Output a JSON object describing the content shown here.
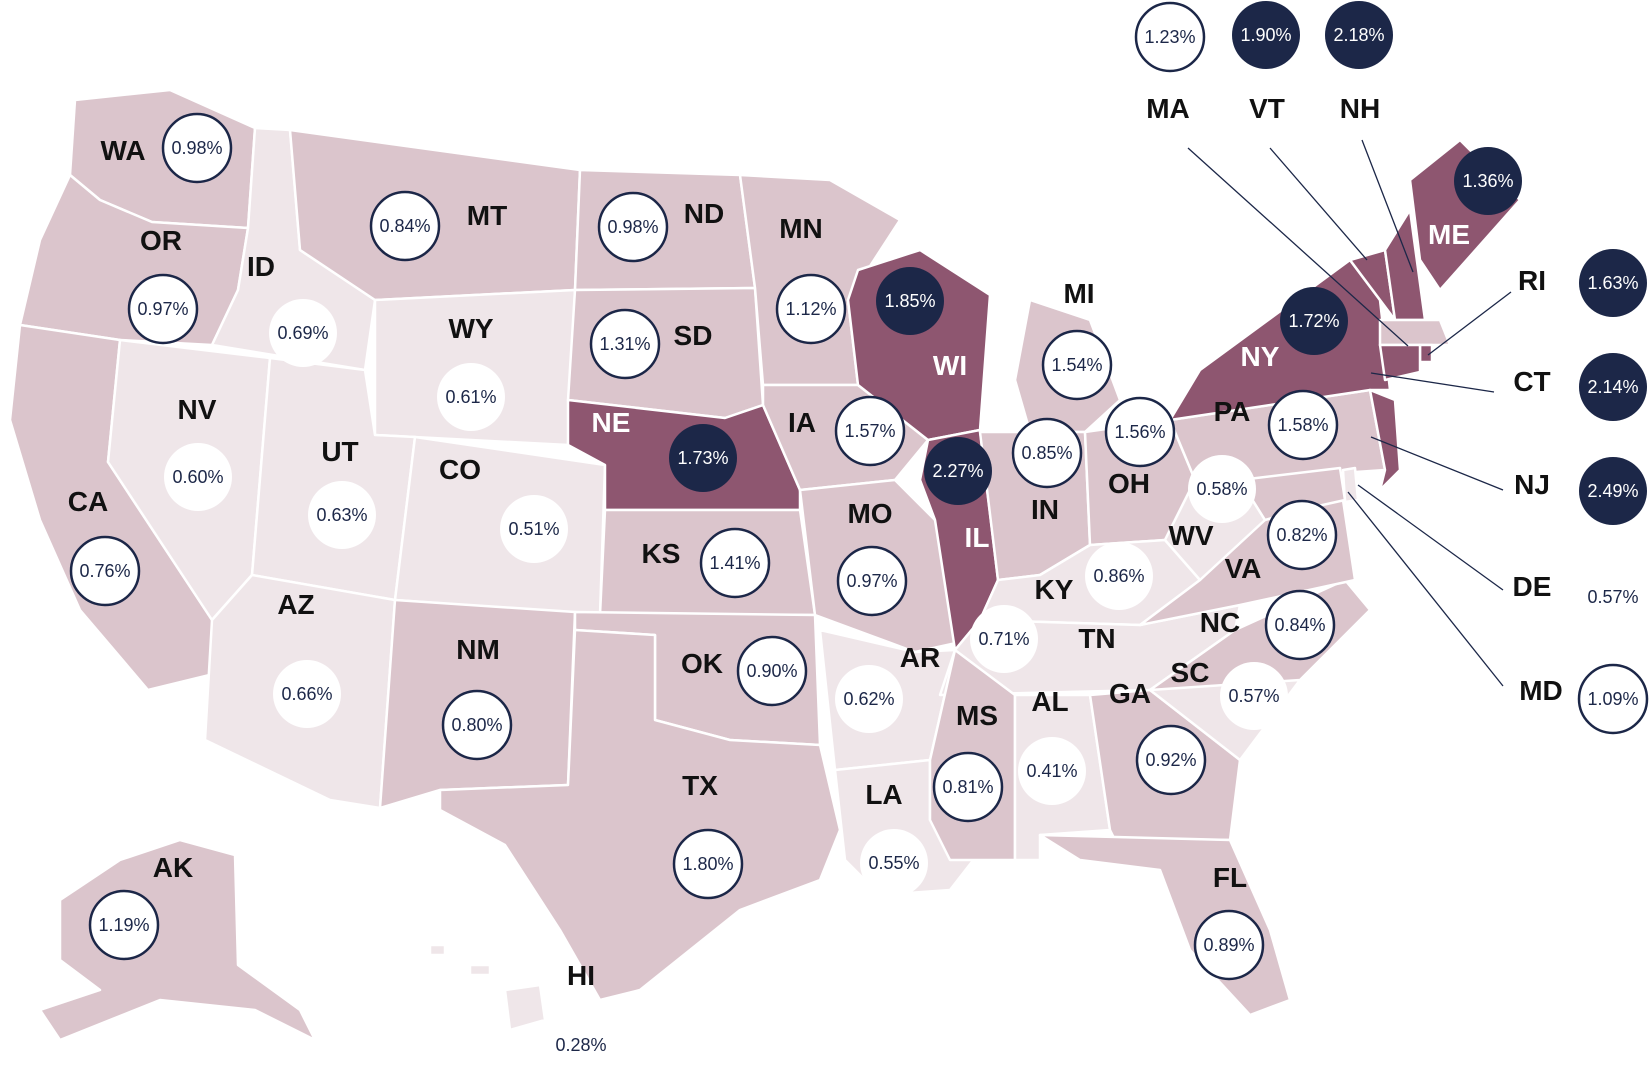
{
  "colors": {
    "tier_low": "#efe6e9",
    "tier_mid": "#dbc5cc",
    "tier_high": "#8e5670",
    "bubble_navy": "#1c2748",
    "label_dark": "#111111",
    "label_light": "#ffffff",
    "leader_line": "#1c2748"
  },
  "states": [
    {
      "abbr": "WA",
      "value": "0.98%",
      "tier": "mid",
      "bubble": "outline"
    },
    {
      "abbr": "OR",
      "value": "0.97%",
      "tier": "mid",
      "bubble": "outline"
    },
    {
      "abbr": "CA",
      "value": "0.76%",
      "tier": "mid",
      "bubble": "outline"
    },
    {
      "abbr": "ID",
      "value": "0.69%",
      "tier": "low",
      "bubble": "white"
    },
    {
      "abbr": "NV",
      "value": "0.60%",
      "tier": "low",
      "bubble": "white"
    },
    {
      "abbr": "MT",
      "value": "0.84%",
      "tier": "mid",
      "bubble": "outline"
    },
    {
      "abbr": "WY",
      "value": "0.61%",
      "tier": "low",
      "bubble": "white"
    },
    {
      "abbr": "UT",
      "value": "0.63%",
      "tier": "low",
      "bubble": "white"
    },
    {
      "abbr": "AZ",
      "value": "0.66%",
      "tier": "low",
      "bubble": "white"
    },
    {
      "abbr": "CO",
      "value": "0.51%",
      "tier": "low",
      "bubble": "white"
    },
    {
      "abbr": "NM",
      "value": "0.80%",
      "tier": "mid",
      "bubble": "outline"
    },
    {
      "abbr": "ND",
      "value": "0.98%",
      "tier": "mid",
      "bubble": "outline"
    },
    {
      "abbr": "SD",
      "value": "1.31%",
      "tier": "mid",
      "bubble": "outline"
    },
    {
      "abbr": "NE",
      "value": "1.73%",
      "tier": "high",
      "bubble": "navy"
    },
    {
      "abbr": "KS",
      "value": "1.41%",
      "tier": "mid",
      "bubble": "outline"
    },
    {
      "abbr": "OK",
      "value": "0.90%",
      "tier": "mid",
      "bubble": "outline"
    },
    {
      "abbr": "TX",
      "value": "1.80%",
      "tier": "mid",
      "bubble": "outline"
    },
    {
      "abbr": "MN",
      "value": "1.12%",
      "tier": "mid",
      "bubble": "outline"
    },
    {
      "abbr": "IA",
      "value": "1.57%",
      "tier": "mid",
      "bubble": "outline"
    },
    {
      "abbr": "MO",
      "value": "0.97%",
      "tier": "mid",
      "bubble": "outline"
    },
    {
      "abbr": "AR",
      "value": "0.62%",
      "tier": "low",
      "bubble": "white"
    },
    {
      "abbr": "LA",
      "value": "0.55%",
      "tier": "low",
      "bubble": "white"
    },
    {
      "abbr": "WI",
      "value": "1.85%",
      "tier": "high",
      "bubble": "navy"
    },
    {
      "abbr": "IL",
      "value": "2.27%",
      "tier": "high",
      "bubble": "navy"
    },
    {
      "abbr": "MI",
      "value": "1.54%",
      "tier": "mid",
      "bubble": "outline"
    },
    {
      "abbr": "IN",
      "value": "0.85%",
      "tier": "mid",
      "bubble": "outline"
    },
    {
      "abbr": "OH",
      "value": "1.56%",
      "tier": "mid",
      "bubble": "outline"
    },
    {
      "abbr": "KY",
      "value": "0.86%",
      "tier": "low",
      "bubble": "white"
    },
    {
      "abbr": "TN",
      "value": "0.71%",
      "tier": "low",
      "bubble": "white"
    },
    {
      "abbr": "MS",
      "value": "0.81%",
      "tier": "mid",
      "bubble": "outline"
    },
    {
      "abbr": "AL",
      "value": "0.41%",
      "tier": "low",
      "bubble": "white"
    },
    {
      "abbr": "GA",
      "value": "0.92%",
      "tier": "mid",
      "bubble": "outline"
    },
    {
      "abbr": "FL",
      "value": "0.89%",
      "tier": "mid",
      "bubble": "outline"
    },
    {
      "abbr": "SC",
      "value": "0.57%",
      "tier": "low",
      "bubble": "white"
    },
    {
      "abbr": "NC",
      "value": "0.84%",
      "tier": "mid",
      "bubble": "outline"
    },
    {
      "abbr": "VA",
      "value": "0.82%",
      "tier": "mid",
      "bubble": "outline"
    },
    {
      "abbr": "WV",
      "value": "0.58%",
      "tier": "low",
      "bubble": "white"
    },
    {
      "abbr": "PA",
      "value": "1.58%",
      "tier": "mid",
      "bubble": "outline"
    },
    {
      "abbr": "NY",
      "value": "1.72%",
      "tier": "high",
      "bubble": "navy"
    },
    {
      "abbr": "ME",
      "value": "1.36%",
      "tier": "high",
      "bubble": "navy"
    },
    {
      "abbr": "VT",
      "value": "1.90%",
      "tier": "high",
      "bubble": "navy"
    },
    {
      "abbr": "NH",
      "value": "2.18%",
      "tier": "high",
      "bubble": "navy"
    },
    {
      "abbr": "MA",
      "value": "1.23%",
      "tier": "mid",
      "bubble": "outline"
    },
    {
      "abbr": "RI",
      "value": "1.63%",
      "tier": "high",
      "bubble": "navy"
    },
    {
      "abbr": "CT",
      "value": "2.14%",
      "tier": "high",
      "bubble": "navy"
    },
    {
      "abbr": "NJ",
      "value": "2.49%",
      "tier": "high",
      "bubble": "navy"
    },
    {
      "abbr": "DE",
      "value": "0.57%",
      "tier": "low",
      "bubble": "plain"
    },
    {
      "abbr": "MD",
      "value": "1.09%",
      "tier": "mid",
      "bubble": "outline"
    },
    {
      "abbr": "AK",
      "value": "1.19%",
      "tier": "mid",
      "bubble": "outline"
    },
    {
      "abbr": "HI",
      "value": "0.28%",
      "tier": "low",
      "bubble": "plain"
    }
  ]
}
